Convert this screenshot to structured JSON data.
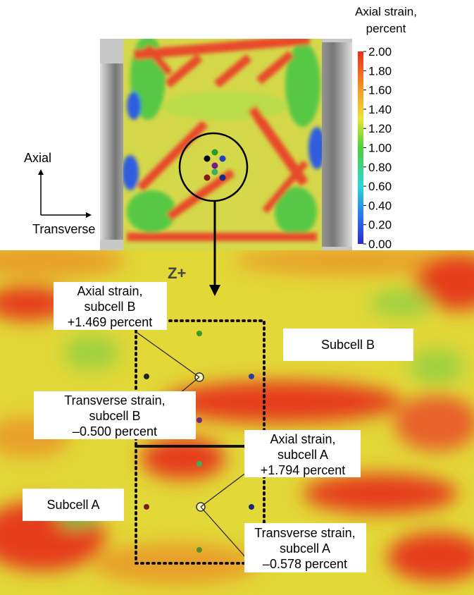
{
  "colorbar": {
    "title": [
      "Axial strain,",
      "percent"
    ],
    "ticks": [
      "2.00",
      "1.80",
      "1.60",
      "1.40",
      "1.20",
      "1.00",
      "0.80",
      "0.60",
      "0.40",
      "0.20",
      "0.00"
    ]
  },
  "orientation": {
    "axial": "Axial",
    "transverse": "Transverse"
  },
  "zoom": {
    "direction": "Z+",
    "callouts": [
      [
        "Axial strain,",
        "subcell B",
        "+1.469 percent"
      ],
      [
        "Transverse strain,",
        "subcell B",
        "–0.500 percent"
      ],
      [
        "Axial strain,",
        "subcell A",
        "+1.794 percent"
      ],
      [
        "Transverse strain,",
        "subcell A",
        "–0.578 percent"
      ]
    ],
    "regions": [
      "Subcell B",
      "Subcell A"
    ]
  }
}
